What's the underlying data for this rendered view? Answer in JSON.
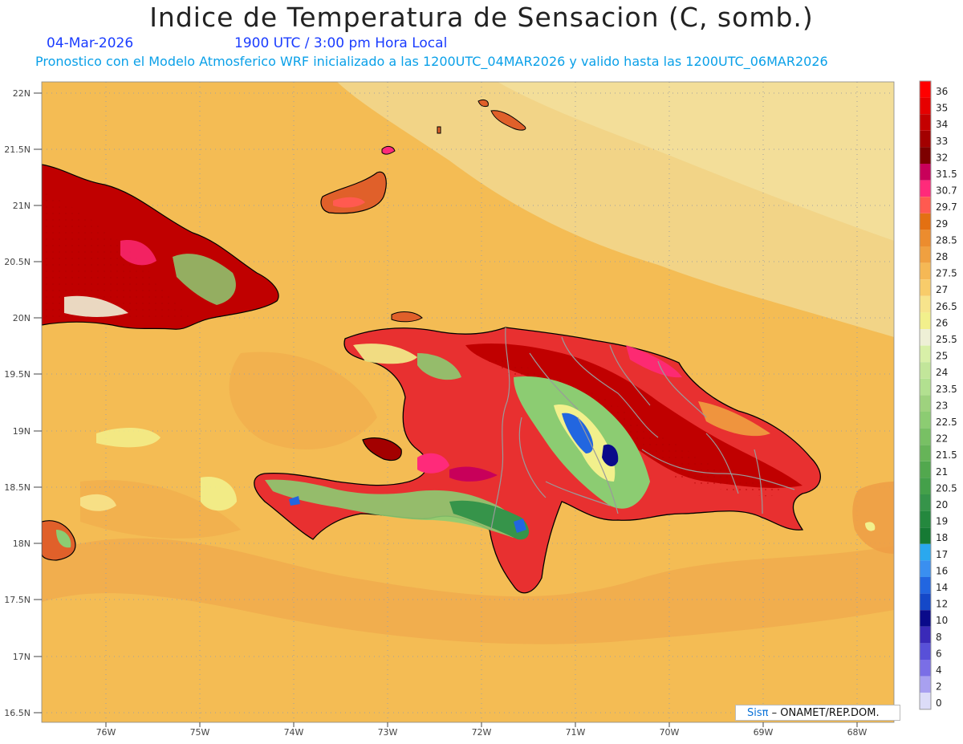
{
  "title": "Indice de Temperatura de Sensacion (C, somb.)",
  "date": "04-Mar-2026",
  "time": "1900 UTC / 3:00 pm Hora Local",
  "subtitle": "Pronostico con el Modelo Atmosferico WRF inicializado a las 1200UTC_04MAR2026 y valido hasta las  1200UTC_06MAR2026",
  "credit": {
    "logo": "Sisπ",
    "text": " – ONAMET/REP.DOM."
  },
  "lat_labels": [
    "22N",
    "21.5N",
    "21N",
    "20.5N",
    "20N",
    "19.5N",
    "19N",
    "18.5N",
    "18N",
    "17.5N",
    "17N",
    "16.5N"
  ],
  "lon_labels": [
    "76W",
    "75W",
    "74W",
    "73W",
    "72W",
    "71W",
    "70W",
    "69W",
    "68W"
  ],
  "legend": {
    "labels": [
      "36",
      "35",
      "34",
      "33",
      "32",
      "31.5",
      "30.7",
      "29.7",
      "29",
      "28.5",
      "28",
      "27.5",
      "27",
      "26.5",
      "26",
      "25.5",
      "25",
      "24",
      "23.5",
      "23",
      "22.5",
      "22",
      "21.5",
      "21",
      "20.5",
      "20",
      "19",
      "18",
      "17",
      "16",
      "14",
      "12",
      "10",
      "8",
      "6",
      "4",
      "2",
      "0"
    ],
    "colors": [
      "#ff0000",
      "#e60000",
      "#c40000",
      "#a30000",
      "#7d0000",
      "#c8005a",
      "#ff2a7a",
      "#ff5a50",
      "#e37012",
      "#ec8c2e",
      "#f0a040",
      "#f5b855",
      "#f8cc6a",
      "#f7e48c",
      "#f2f08c",
      "#eef0d6",
      "#d8f0a8",
      "#c2e69a",
      "#b2e090",
      "#9ed27e",
      "#8ccc72",
      "#78c064",
      "#66b458",
      "#52a84e",
      "#44a04a",
      "#36944a",
      "#24883e",
      "#167a34",
      "#2aa8ee",
      "#3a8ff0",
      "#2266e0",
      "#1448c8",
      "#0a0a8a",
      "#3a2ab8",
      "#5850d8",
      "#7a6ee6",
      "#a8a0f0",
      "#dcdcf8"
    ]
  },
  "colors": {
    "sea_warm": "#f4bc54",
    "sea_cool": "#f1d890",
    "sea_dark": "#ee9e46",
    "land_hot": "#c00000",
    "land_red": "#e83030",
    "land_warm": "#e0602a",
    "highland_green": "#8ccc72",
    "mountain_blue": "#2266e0",
    "coast": "#000000",
    "provinces": "#9a9a9a",
    "grid": "#a0a0a0"
  }
}
